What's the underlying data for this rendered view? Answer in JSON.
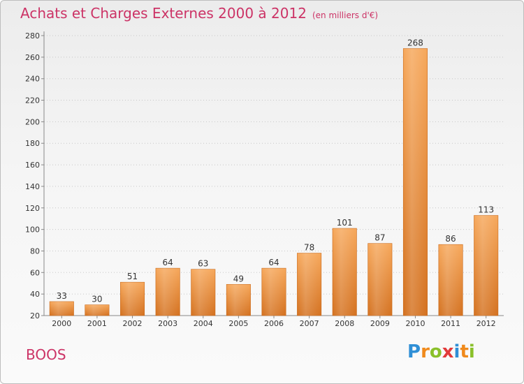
{
  "title": "Achats et Charges Externes 2000 à 2012",
  "unit_note": "(en milliers d'€)",
  "commune": "BOOS",
  "logo": {
    "letters": [
      "P",
      "r",
      "o",
      "x",
      "i",
      "t",
      "i"
    ],
    "colors": [
      "#2f8fd6",
      "#f08a1c",
      "#8ac02a",
      "#e23a3a",
      "#2f8fd6",
      "#f08a1c",
      "#8ac02a"
    ]
  },
  "colors": {
    "bar_light": "#f6a75a",
    "bar_dark": "#d4711f",
    "title": "#cc3366"
  },
  "chart_data": {
    "type": "bar",
    "categories": [
      "2000",
      "2001",
      "2002",
      "2003",
      "2004",
      "2005",
      "2006",
      "2007",
      "2008",
      "2009",
      "2010",
      "2011",
      "2012"
    ],
    "values": [
      33,
      30,
      51,
      64,
      63,
      49,
      64,
      78,
      101,
      87,
      268,
      86,
      113
    ],
    "ylim": [
      20,
      280
    ],
    "yticks": [
      20,
      40,
      60,
      80,
      100,
      120,
      140,
      160,
      180,
      200,
      220,
      240,
      260,
      280
    ],
    "grid": "horizontal-dotted",
    "xlabel": "",
    "ylabel": ""
  }
}
